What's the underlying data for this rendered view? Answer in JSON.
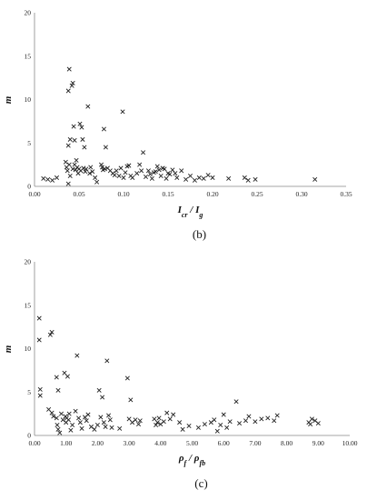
{
  "chart_data": [
    {
      "type": "scatter",
      "caption": "(b)",
      "ylabel": "m",
      "xlabel": "I_cr / I_g",
      "xlim": [
        0,
        0.35
      ],
      "ylim": [
        0,
        20
      ],
      "x_ticks": [
        "0.00",
        "0.05",
        "0.10",
        "0.15",
        "0.20",
        "0.25",
        "0.30",
        "0.35"
      ],
      "y_ticks": [
        "0",
        "5",
        "10",
        "15",
        "20"
      ],
      "grid": false,
      "marker": "x",
      "points": [
        [
          0.01,
          0.9
        ],
        [
          0.015,
          0.8
        ],
        [
          0.02,
          0.7
        ],
        [
          0.025,
          1.0
        ],
        [
          0.035,
          2.8
        ],
        [
          0.036,
          2.2
        ],
        [
          0.037,
          1.8
        ],
        [
          0.038,
          0.3
        ],
        [
          0.038,
          4.7
        ],
        [
          0.038,
          11.0
        ],
        [
          0.039,
          13.5
        ],
        [
          0.039,
          2.5
        ],
        [
          0.04,
          1.2
        ],
        [
          0.04,
          5.4
        ],
        [
          0.042,
          11.6
        ],
        [
          0.043,
          11.9
        ],
        [
          0.043,
          2.0
        ],
        [
          0.044,
          6.9
        ],
        [
          0.045,
          5.3
        ],
        [
          0.045,
          2.5
        ],
        [
          0.046,
          1.9
        ],
        [
          0.047,
          3.0
        ],
        [
          0.048,
          2.2
        ],
        [
          0.049,
          1.5
        ],
        [
          0.05,
          2.0
        ],
        [
          0.051,
          7.2
        ],
        [
          0.052,
          1.8
        ],
        [
          0.053,
          6.8
        ],
        [
          0.054,
          5.4
        ],
        [
          0.055,
          2.1
        ],
        [
          0.056,
          4.5
        ],
        [
          0.057,
          1.7
        ],
        [
          0.058,
          2.0
        ],
        [
          0.06,
          9.2
        ],
        [
          0.062,
          1.5
        ],
        [
          0.063,
          2.2
        ],
        [
          0.065,
          1.7
        ],
        [
          0.068,
          1.0
        ],
        [
          0.07,
          0.5
        ],
        [
          0.075,
          2.5
        ],
        [
          0.076,
          2.2
        ],
        [
          0.077,
          1.9
        ],
        [
          0.078,
          6.6
        ],
        [
          0.079,
          2.0
        ],
        [
          0.08,
          4.5
        ],
        [
          0.082,
          2.1
        ],
        [
          0.085,
          1.8
        ],
        [
          0.088,
          1.5
        ],
        [
          0.09,
          1.3
        ],
        [
          0.092,
          1.8
        ],
        [
          0.095,
          1.2
        ],
        [
          0.097,
          2.1
        ],
        [
          0.099,
          8.6
        ],
        [
          0.1,
          1.0
        ],
        [
          0.102,
          1.6
        ],
        [
          0.104,
          2.3
        ],
        [
          0.106,
          2.4
        ],
        [
          0.108,
          1.2
        ],
        [
          0.11,
          1.0
        ],
        [
          0.115,
          1.5
        ],
        [
          0.118,
          2.5
        ],
        [
          0.12,
          1.8
        ],
        [
          0.122,
          3.9
        ],
        [
          0.125,
          1.1
        ],
        [
          0.128,
          1.8
        ],
        [
          0.13,
          1.4
        ],
        [
          0.132,
          0.9
        ],
        [
          0.134,
          1.6
        ],
        [
          0.136,
          1.7
        ],
        [
          0.138,
          2.3
        ],
        [
          0.14,
          1.9
        ],
        [
          0.142,
          1.2
        ],
        [
          0.144,
          2.1
        ],
        [
          0.146,
          2.0
        ],
        [
          0.148,
          0.9
        ],
        [
          0.15,
          1.5
        ],
        [
          0.152,
          1.4
        ],
        [
          0.155,
          1.9
        ],
        [
          0.158,
          1.5
        ],
        [
          0.16,
          1.0
        ],
        [
          0.165,
          1.8
        ],
        [
          0.17,
          0.8
        ],
        [
          0.175,
          1.2
        ],
        [
          0.18,
          0.7
        ],
        [
          0.185,
          1.0
        ],
        [
          0.19,
          0.9
        ],
        [
          0.195,
          1.3
        ],
        [
          0.2,
          1.0
        ],
        [
          0.218,
          0.9
        ],
        [
          0.236,
          1.0
        ],
        [
          0.24,
          0.7
        ],
        [
          0.248,
          0.8
        ],
        [
          0.315,
          0.8
        ]
      ]
    },
    {
      "type": "scatter",
      "caption": "(c)",
      "ylabel": "m",
      "xlabel": "ρ_f / ρ_fb",
      "xlim": [
        0,
        10
      ],
      "ylim": [
        0,
        20
      ],
      "x_ticks": [
        "0.00",
        "1.00",
        "2.00",
        "3.00",
        "4.00",
        "5.00",
        "6.00",
        "7.00",
        "8.00",
        "9.00",
        "10.00"
      ],
      "y_ticks": [
        "0",
        "5",
        "10",
        "15",
        "20"
      ],
      "grid": false,
      "marker": "x",
      "points": [
        [
          0.15,
          13.5
        ],
        [
          0.15,
          11.0
        ],
        [
          0.18,
          5.3
        ],
        [
          0.18,
          4.6
        ],
        [
          0.5,
          11.6
        ],
        [
          0.55,
          11.9
        ],
        [
          0.45,
          3.0
        ],
        [
          0.55,
          2.6
        ],
        [
          0.6,
          2.2
        ],
        [
          0.7,
          6.7
        ],
        [
          0.75,
          5.2
        ],
        [
          0.7,
          2.0
        ],
        [
          0.72,
          1.2
        ],
        [
          0.75,
          0.7
        ],
        [
          0.8,
          0.3
        ],
        [
          0.85,
          2.5
        ],
        [
          0.9,
          1.8
        ],
        [
          0.95,
          7.2
        ],
        [
          0.98,
          2.2
        ],
        [
          1.0,
          1.5
        ],
        [
          1.02,
          2.0
        ],
        [
          1.05,
          6.8
        ],
        [
          1.08,
          1.8
        ],
        [
          1.1,
          2.5
        ],
        [
          1.15,
          0.6
        ],
        [
          1.2,
          1.2
        ],
        [
          1.35,
          9.2
        ],
        [
          1.3,
          2.8
        ],
        [
          1.4,
          2.0
        ],
        [
          1.45,
          1.5
        ],
        [
          1.5,
          0.8
        ],
        [
          1.6,
          2.1
        ],
        [
          1.65,
          1.7
        ],
        [
          1.7,
          2.4
        ],
        [
          1.8,
          1.0
        ],
        [
          1.9,
          0.7
        ],
        [
          2.0,
          1.2
        ],
        [
          2.05,
          5.2
        ],
        [
          2.1,
          2.1
        ],
        [
          2.15,
          4.4
        ],
        [
          2.2,
          1.5
        ],
        [
          2.25,
          1.0
        ],
        [
          2.3,
          8.6
        ],
        [
          2.35,
          2.3
        ],
        [
          2.4,
          1.8
        ],
        [
          2.45,
          0.9
        ],
        [
          2.7,
          0.8
        ],
        [
          2.95,
          6.6
        ],
        [
          3.0,
          1.9
        ],
        [
          3.05,
          4.1
        ],
        [
          3.1,
          1.5
        ],
        [
          3.2,
          1.8
        ],
        [
          3.3,
          1.3
        ],
        [
          3.35,
          1.7
        ],
        [
          3.8,
          1.9
        ],
        [
          3.85,
          1.2
        ],
        [
          3.9,
          1.5
        ],
        [
          3.95,
          2.0
        ],
        [
          4.0,
          1.3
        ],
        [
          4.1,
          1.6
        ],
        [
          4.2,
          2.6
        ],
        [
          4.3,
          1.9
        ],
        [
          4.4,
          2.4
        ],
        [
          4.6,
          1.5
        ],
        [
          4.7,
          0.7
        ],
        [
          4.9,
          1.1
        ],
        [
          5.2,
          0.9
        ],
        [
          5.4,
          1.3
        ],
        [
          5.6,
          1.5
        ],
        [
          5.7,
          1.8
        ],
        [
          5.8,
          0.5
        ],
        [
          5.9,
          1.2
        ],
        [
          6.0,
          2.4
        ],
        [
          6.1,
          0.9
        ],
        [
          6.2,
          1.6
        ],
        [
          6.4,
          3.9
        ],
        [
          6.5,
          1.4
        ],
        [
          6.7,
          1.7
        ],
        [
          6.8,
          2.2
        ],
        [
          7.0,
          1.6
        ],
        [
          7.2,
          1.9
        ],
        [
          7.4,
          2.0
        ],
        [
          7.6,
          1.7
        ],
        [
          7.7,
          2.3
        ],
        [
          8.7,
          1.5
        ],
        [
          8.75,
          1.3
        ],
        [
          8.8,
          1.9
        ],
        [
          8.9,
          1.7
        ],
        [
          9.0,
          1.4
        ]
      ]
    }
  ]
}
